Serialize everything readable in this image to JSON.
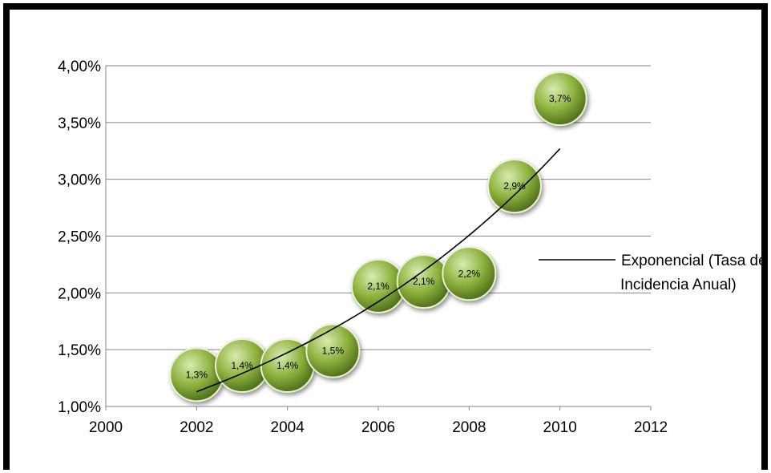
{
  "chart_data": {
    "type": "scatter",
    "x_ticks": [
      "2000",
      "2002",
      "2004",
      "2006",
      "2008",
      "2010",
      "2012"
    ],
    "y_ticks": [
      "1,00%",
      "1,50%",
      "2,00%",
      "2,50%",
      "3,00%",
      "3,50%",
      "4,00%"
    ],
    "xlim": [
      2000,
      2012
    ],
    "ylim": [
      1.0,
      4.0
    ],
    "grid": "horizontal",
    "legend_position": "right",
    "points": [
      {
        "x": 2002,
        "y": 1.28,
        "label": "1,3%"
      },
      {
        "x": 2003,
        "y": 1.36,
        "label": "1,4%"
      },
      {
        "x": 2004,
        "y": 1.36,
        "label": "1,4%"
      },
      {
        "x": 2005,
        "y": 1.49,
        "label": "1,5%"
      },
      {
        "x": 2006,
        "y": 2.06,
        "label": "2,1%"
      },
      {
        "x": 2007,
        "y": 2.1,
        "label": "2,1%"
      },
      {
        "x": 2008,
        "y": 2.17,
        "label": "2,2%"
      },
      {
        "x": 2009,
        "y": 2.94,
        "label": "2,9%"
      },
      {
        "x": 2010,
        "y": 3.71,
        "label": "3,7%"
      }
    ],
    "trendline": {
      "type": "exponential",
      "x_range": [
        2002,
        2010
      ],
      "y_start": 1.13,
      "y_end": 3.27,
      "legend_label_lines": [
        "Exponencial (Tasa de",
        "Incidencia Anual)"
      ]
    },
    "colors": {
      "bubble_light": "#d8ebb0",
      "bubble_mid": "#8fb23e",
      "bubble_dark": "#4d6e1c",
      "gridline": "#868686",
      "trendline": "#000000"
    }
  }
}
